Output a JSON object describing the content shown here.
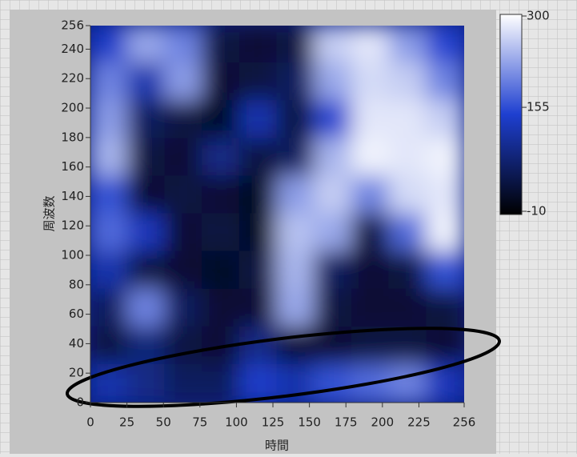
{
  "chart_data": {
    "type": "heatmap",
    "xlabel": "時間",
    "ylabel": "周波数",
    "xlim": [
      0,
      256
    ],
    "xticks": [
      0,
      25,
      50,
      75,
      100,
      125,
      150,
      175,
      200,
      225,
      256
    ],
    "ylim": [
      0,
      256
    ],
    "yticks": [
      0,
      20,
      40,
      60,
      80,
      100,
      120,
      140,
      160,
      180,
      200,
      220,
      240,
      256
    ],
    "clim": [
      -10,
      300
    ],
    "cticks": [
      -10,
      155,
      300
    ],
    "colors": [
      "#000000",
      "#1e3fd0",
      "#ffffff"
    ],
    "values": [
      [
        140,
        230,
        200,
        40,
        30,
        40,
        260,
        280,
        220,
        150
      ],
      [
        200,
        120,
        220,
        30,
        40,
        60,
        230,
        270,
        260,
        200
      ],
      [
        220,
        60,
        40,
        20,
        120,
        40,
        150,
        280,
        280,
        260
      ],
      [
        240,
        40,
        30,
        90,
        40,
        60,
        240,
        290,
        280,
        290
      ],
      [
        160,
        30,
        40,
        30,
        20,
        220,
        260,
        200,
        270,
        280
      ],
      [
        180,
        130,
        30,
        40,
        20,
        250,
        230,
        40,
        180,
        290
      ],
      [
        120,
        40,
        30,
        20,
        40,
        240,
        60,
        30,
        40,
        160
      ],
      [
        60,
        200,
        60,
        30,
        30,
        230,
        40,
        30,
        30,
        40
      ],
      [
        40,
        80,
        40,
        30,
        90,
        30,
        30,
        40,
        40,
        30
      ],
      [
        120,
        90,
        60,
        60,
        140,
        120,
        160,
        180,
        200,
        130
      ]
    ]
  }
}
